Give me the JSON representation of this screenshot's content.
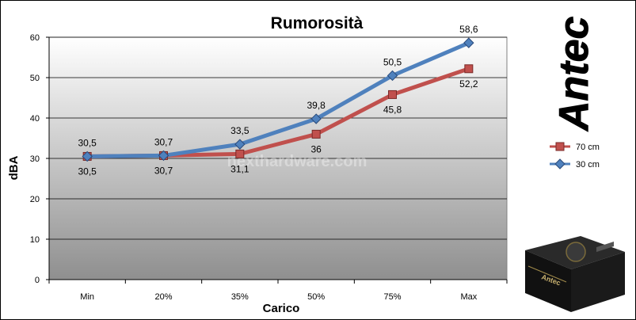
{
  "brand": {
    "logo_text": "Antec",
    "product": "PSU"
  },
  "watermark": "nexthardware.com",
  "chart_data": {
    "type": "line",
    "title": "Rumorosità",
    "xlabel": "Carico",
    "ylabel": "dBA",
    "categories": [
      "Min",
      "20%",
      "35%",
      "50%",
      "75%",
      "Max"
    ],
    "ylim": [
      0,
      60
    ],
    "yticks": [
      0,
      10,
      20,
      30,
      40,
      50,
      60
    ],
    "grid": true,
    "legend_position": "right",
    "series": [
      {
        "name": "70 cm",
        "values": [
          30.5,
          30.7,
          31.1,
          36,
          45.8,
          52.2
        ],
        "labels": [
          "30,5",
          "30,7",
          "31,1",
          "36",
          "45,8",
          "52,2"
        ],
        "color": "#c0504d",
        "marker": "square"
      },
      {
        "name": "30 cm",
        "values": [
          30.5,
          30.7,
          33.5,
          39.8,
          50.5,
          58.6
        ],
        "labels": [
          "30,5",
          "30,7",
          "33,5",
          "39,8",
          "50,5",
          "58,6"
        ],
        "color": "#4f81bd",
        "marker": "diamond"
      }
    ]
  }
}
